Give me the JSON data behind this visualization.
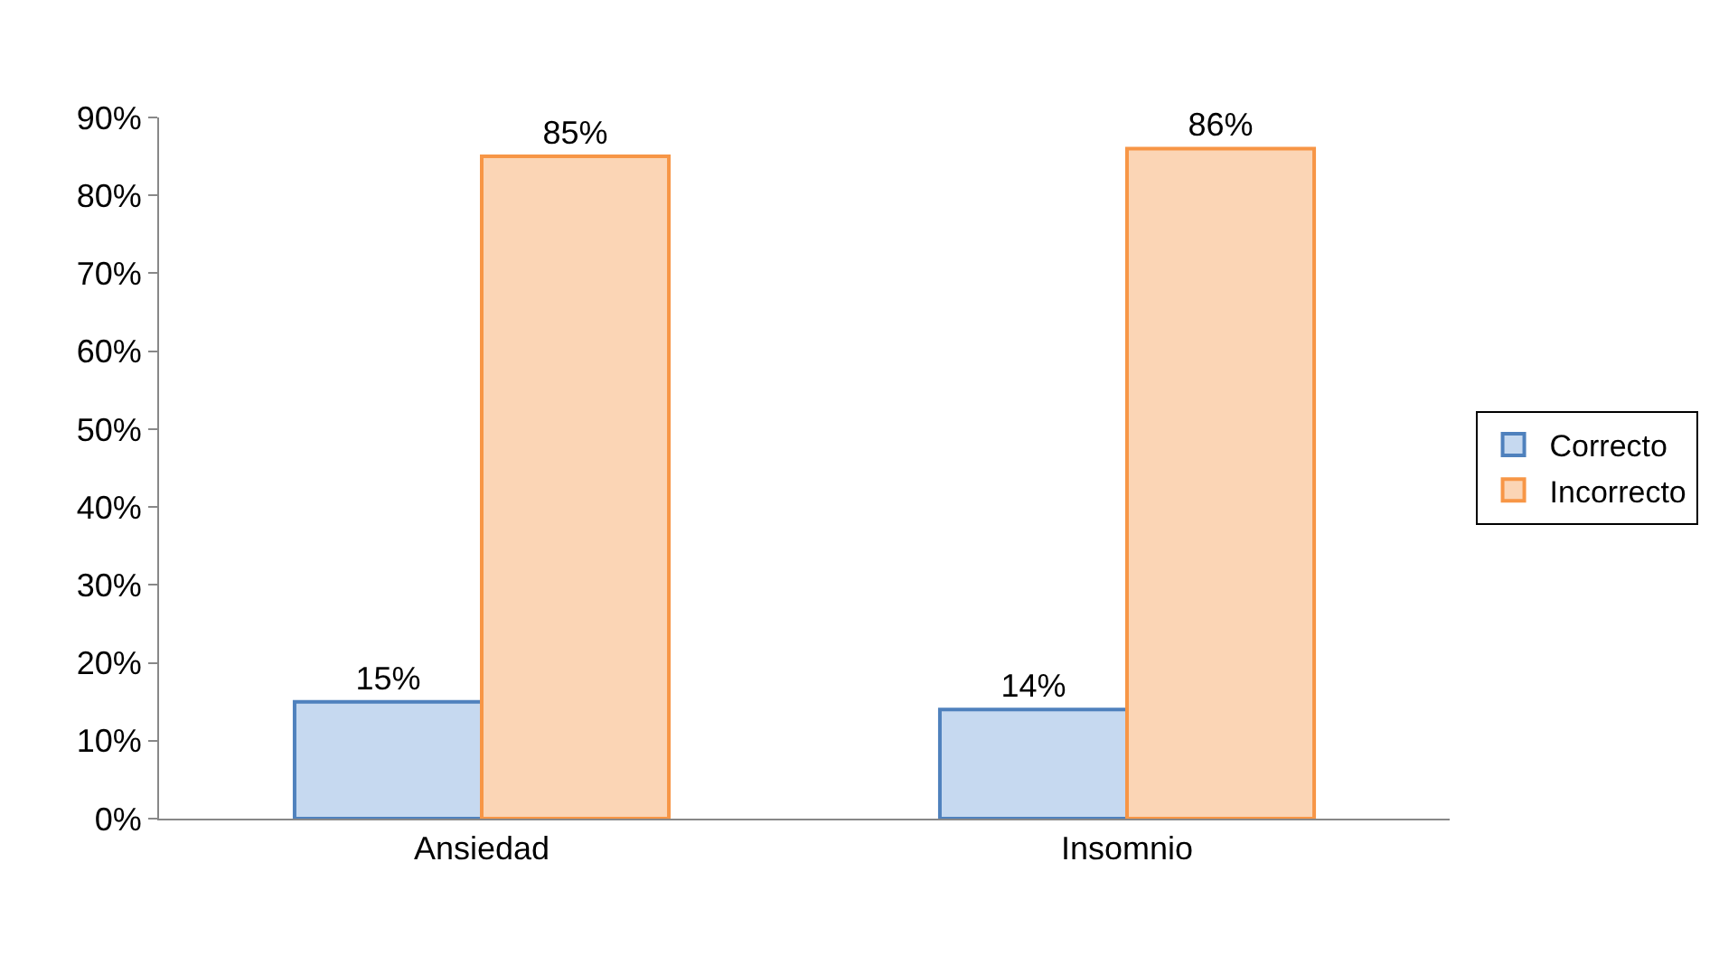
{
  "chart_data": {
    "type": "bar",
    "categories": [
      "Ansiedad",
      "Insomnio"
    ],
    "series": [
      {
        "name": "Correcto",
        "color": "#c6d9f0",
        "values": [
          15,
          14
        ],
        "value_labels": [
          "15%",
          "14%"
        ]
      },
      {
        "name": "Incorrecto",
        "color": "#fbd5b5",
        "values": [
          85,
          86
        ],
        "value_labels": [
          "85%",
          "86%"
        ]
      }
    ],
    "ylim": [
      0,
      90
    ],
    "yticks": [
      {
        "value": 0,
        "label": "0%"
      },
      {
        "value": 10,
        "label": "10%"
      },
      {
        "value": 20,
        "label": "20%"
      },
      {
        "value": 30,
        "label": "30%"
      },
      {
        "value": 40,
        "label": "40%"
      },
      {
        "value": 50,
        "label": "50%"
      },
      {
        "value": 60,
        "label": "60%"
      },
      {
        "value": 70,
        "label": "70%"
      },
      {
        "value": 80,
        "label": "80%"
      },
      {
        "value": 90,
        "label": "90%"
      }
    ],
    "grid": false,
    "legend": "right"
  }
}
